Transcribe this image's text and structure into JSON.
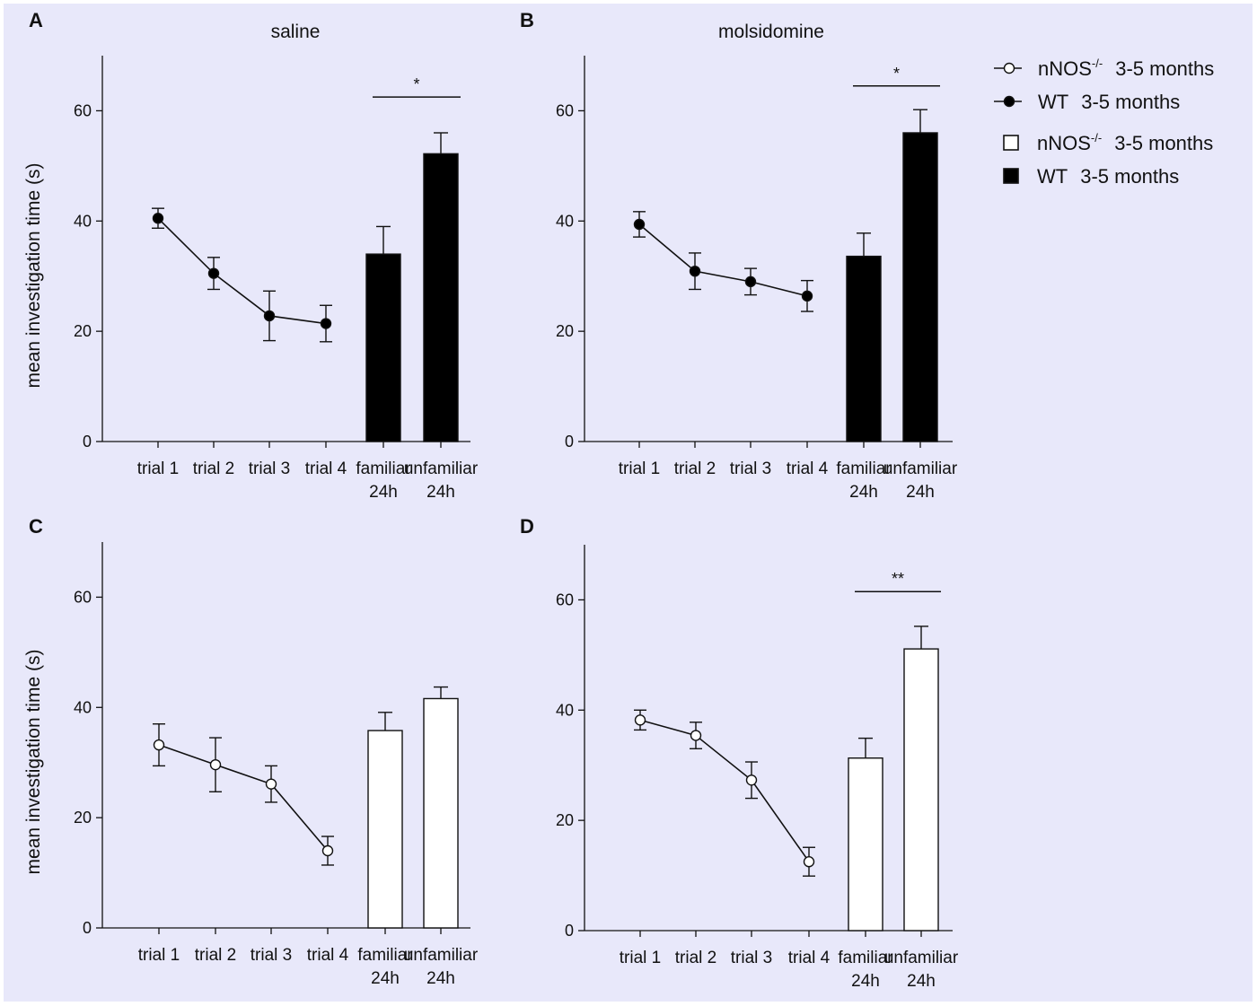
{
  "chart_data": [
    {
      "panel": "A",
      "title": "saline",
      "type": "line+bar",
      "ylabel": "mean investigation time (s)",
      "ylim": [
        0,
        70
      ],
      "yticks": [
        0,
        20,
        40,
        60
      ],
      "categories": [
        "trial 1",
        "trial 2",
        "trial 3",
        "trial 4",
        "familiar\n24h",
        "unfamiliar\n24h"
      ],
      "marker": "filled",
      "line": {
        "name": "WT 3-5 months",
        "x": [
          "trial 1",
          "trial 2",
          "trial 3",
          "trial 4"
        ],
        "values": [
          40.5,
          30.5,
          22.8,
          21.4
        ],
        "errors": [
          1.8,
          2.9,
          4.5,
          3.3
        ]
      },
      "bars": {
        "name": "WT 3-5 months",
        "x": [
          "familiar\n24h",
          "unfamiliar\n24h"
        ],
        "values": [
          34.0,
          52.2
        ],
        "errors": [
          5.0,
          3.8
        ]
      },
      "significance": {
        "label": "*",
        "from": "familiar\n24h",
        "to": "unfamiliar\n24h",
        "y": 62.5
      }
    },
    {
      "panel": "B",
      "title": "molsidomine",
      "type": "line+bar",
      "ylabel": "",
      "ylim": [
        0,
        70
      ],
      "yticks": [
        0,
        20,
        40,
        60
      ],
      "categories": [
        "trial 1",
        "trial 2",
        "trial 3",
        "trial 4",
        "familiar\n24h",
        "unfamiliar\n24h"
      ],
      "marker": "filled",
      "line": {
        "name": "WT 3-5 months",
        "x": [
          "trial 1",
          "trial 2",
          "trial 3",
          "trial 4"
        ],
        "values": [
          39.4,
          30.9,
          29.0,
          26.4
        ],
        "errors": [
          2.3,
          3.3,
          2.4,
          2.8
        ]
      },
      "bars": {
        "name": "WT 3-5 months",
        "x": [
          "familiar\n24h",
          "unfamiliar\n24h"
        ],
        "values": [
          33.6,
          56.0
        ],
        "errors": [
          4.2,
          4.2
        ]
      },
      "significance": {
        "label": "*",
        "from": "familiar\n24h",
        "to": "unfamiliar\n24h",
        "y": 64.5
      }
    },
    {
      "panel": "C",
      "title": "",
      "type": "line+bar",
      "ylabel": "mean investigation time (s)",
      "ylim": [
        0,
        70
      ],
      "yticks": [
        0,
        20,
        40,
        60
      ],
      "categories": [
        "trial 1",
        "trial 2",
        "trial 3",
        "trial 4",
        "familiar\n24h",
        "unfamiliar\n24h"
      ],
      "marker": "open",
      "line": {
        "name": "nNOS-/- 3-5 months",
        "x": [
          "trial 1",
          "trial 2",
          "trial 3",
          "trial 4"
        ],
        "values": [
          33.2,
          29.6,
          26.1,
          14.0
        ],
        "errors": [
          3.8,
          4.9,
          3.3,
          2.6
        ]
      },
      "bars": {
        "name": "nNOS-/- 3-5 months",
        "x": [
          "familiar\n24h",
          "unfamiliar\n24h"
        ],
        "values": [
          35.8,
          41.6
        ],
        "errors": [
          3.3,
          2.1
        ]
      },
      "significance": null
    },
    {
      "panel": "D",
      "title": "",
      "type": "line+bar",
      "ylabel": "",
      "ylim": [
        0,
        70
      ],
      "yticks": [
        0,
        20,
        40,
        60
      ],
      "categories": [
        "trial 1",
        "trial 2",
        "trial 3",
        "trial 4",
        "familiar\n24h",
        "unfamiliar\n24h"
      ],
      "marker": "open",
      "line": {
        "name": "nNOS-/- 3-5 months",
        "x": [
          "trial 1",
          "trial 2",
          "trial 3",
          "trial 4"
        ],
        "values": [
          38.2,
          35.4,
          27.3,
          12.5
        ],
        "errors": [
          1.8,
          2.4,
          3.3,
          2.6
        ]
      },
      "bars": {
        "name": "nNOS-/- 3-5 months",
        "x": [
          "familiar\n24h",
          "unfamiliar\n24h"
        ],
        "values": [
          31.3,
          51.1
        ],
        "errors": [
          3.6,
          4.1
        ]
      },
      "significance": {
        "label": "**",
        "from": "familiar\n24h",
        "to": "unfamiliar\n24h",
        "y": 61.5
      }
    }
  ],
  "legend": [
    {
      "kind": "line-open",
      "name": "nNOS",
      "sup": "-/-",
      "age": "3-5 months"
    },
    {
      "kind": "line-filled",
      "name": "WT",
      "sup": "",
      "age": "3-5 months"
    },
    {
      "kind": "bar-open",
      "name": "nNOS",
      "sup": "-/-",
      "age": "3-5 months"
    },
    {
      "kind": "bar-filled",
      "name": "WT",
      "sup": "",
      "age": "3-5 months"
    }
  ],
  "colors": {
    "ink": "#111111",
    "background": "#e8e8fa",
    "open_fill": "#ffffff",
    "filled": "#000000"
  }
}
